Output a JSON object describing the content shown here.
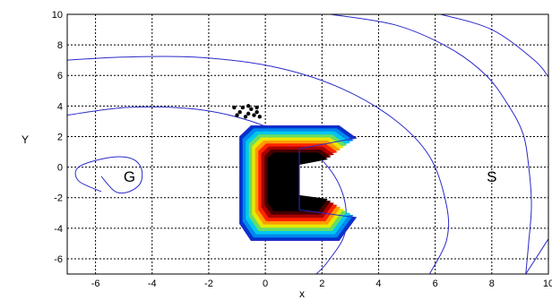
{
  "chart_data": {
    "type": "contour",
    "title": "",
    "xlabel": "x",
    "ylabel": "Y",
    "xlim": [
      -7,
      10
    ],
    "ylim": [
      -7,
      10
    ],
    "grid": true,
    "xticks": [
      -6,
      -4,
      -2,
      0,
      2,
      4,
      6,
      8,
      10
    ],
    "yticks": [
      -6,
      -4,
      -2,
      0,
      2,
      4,
      6,
      8,
      10
    ],
    "xtick_labels": [
      "-6",
      "-4",
      "-2",
      "0",
      "2",
      "4",
      "6",
      "8",
      "10"
    ],
    "ytick_labels": [
      "-6",
      "-4",
      "-2",
      "0",
      "2",
      "4",
      "6",
      "8",
      "10"
    ],
    "contour_color": "#2a2ac8",
    "contours": [
      {
        "points": [
          [
            -5.8,
            -0.6
          ],
          [
            -5.3,
            -1.6
          ],
          [
            -4.8,
            -1.6
          ],
          [
            -4.4,
            -1.0
          ],
          [
            -4.4,
            0.0
          ],
          [
            -4.8,
            0.6
          ],
          [
            -5.6,
            0.6
          ],
          [
            -6.6,
            0.0
          ],
          [
            -6.6,
            -0.9
          ],
          [
            -5.8,
            -1.6
          ]
        ]
      },
      {
        "points": [
          [
            -7.0,
            3.4
          ],
          [
            -4.9,
            3.9
          ],
          [
            -2.5,
            3.8
          ],
          [
            -0.5,
            3.0
          ],
          [
            1.3,
            1.5
          ],
          [
            2.3,
            -0.2
          ],
          [
            2.8,
            -2.2
          ],
          [
            2.8,
            -4.4
          ],
          [
            2.2,
            -6.2
          ],
          [
            1.8,
            -7.0
          ]
        ]
      },
      {
        "points": [
          [
            -7.0,
            7.0
          ],
          [
            -5.0,
            7.2
          ],
          [
            -2.5,
            7.2
          ],
          [
            0.2,
            6.6
          ],
          [
            2.5,
            5.3
          ],
          [
            4.5,
            3.2
          ],
          [
            5.8,
            0.7
          ],
          [
            6.4,
            -2.5
          ],
          [
            6.4,
            -4.8
          ],
          [
            5.8,
            -7.0
          ]
        ]
      },
      {
        "points": [
          [
            2.3,
            10.0
          ],
          [
            4.6,
            9.3
          ],
          [
            6.5,
            7.8
          ],
          [
            7.8,
            6.0
          ],
          [
            8.6,
            4.0
          ],
          [
            9.1,
            2.2
          ],
          [
            9.3,
            0.1
          ],
          [
            9.4,
            -2.5
          ],
          [
            9.3,
            -5.0
          ],
          [
            9.2,
            -7.0
          ]
        ]
      },
      {
        "points": [
          [
            6.2,
            10.0
          ],
          [
            8.0,
            9.0
          ],
          [
            9.5,
            7.0
          ],
          [
            10.0,
            5.9
          ]
        ]
      },
      {
        "points": [
          [
            10.0,
            -4.7
          ],
          [
            9.2,
            -7.0
          ]
        ]
      }
    ],
    "obstacle": {
      "shape": "C",
      "outline": [
        [
          -0.9,
          2.0
        ],
        [
          -0.5,
          2.7
        ],
        [
          2.6,
          2.7
        ],
        [
          3.2,
          1.9
        ],
        [
          1.2,
          1.2
        ],
        [
          1.2,
          -2.8
        ],
        [
          3.2,
          -3.3
        ],
        [
          2.6,
          -4.8
        ],
        [
          -0.5,
          -4.8
        ],
        [
          -0.9,
          -3.7
        ]
      ],
      "colors": [
        "#0033cc",
        "#0088ee",
        "#00c8ee",
        "#66dd66",
        "#e8e800",
        "#ff9900",
        "#ff2200",
        "#aa0000",
        "#440000",
        "#000000"
      ]
    },
    "points": [
      {
        "label": "G",
        "x": -4.8,
        "y": -0.6
      },
      {
        "label": "S",
        "x": 8.0,
        "y": -0.6
      }
    ],
    "scatter_cluster": [
      [
        -1.1,
        3.9
      ],
      [
        -0.9,
        3.6
      ],
      [
        -0.8,
        3.9
      ],
      [
        -0.6,
        3.5
      ],
      [
        -0.5,
        3.8
      ],
      [
        -0.4,
        3.4
      ],
      [
        -0.3,
        3.6
      ],
      [
        -0.2,
        3.3
      ],
      [
        -0.7,
        3.3
      ],
      [
        -1.0,
        3.4
      ],
      [
        -0.6,
        4.0
      ],
      [
        -0.3,
        3.9
      ]
    ]
  }
}
